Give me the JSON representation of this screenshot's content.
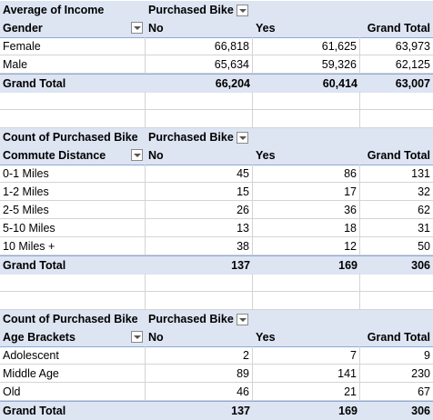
{
  "pivots": [
    {
      "value_label": "Average of Income",
      "column_field": "Purchased Bike",
      "row_field": "Gender",
      "col_headers": [
        "No",
        "Yes",
        "Grand Total"
      ],
      "rows": [
        {
          "label": "Female",
          "no": "66,818",
          "yes": "61,625",
          "total": "63,973"
        },
        {
          "label": "Male",
          "no": "65,634",
          "yes": "59,326",
          "total": "62,125"
        }
      ],
      "grand_total": {
        "label": "Grand Total",
        "no": "66,204",
        "yes": "60,414",
        "total": "63,007"
      }
    },
    {
      "value_label": "Count of Purchased Bike",
      "column_field": "Purchased Bike",
      "row_field": "Commute Distance",
      "col_headers": [
        "No",
        "Yes",
        "Grand Total"
      ],
      "rows": [
        {
          "label": "0-1 Miles",
          "no": "45",
          "yes": "86",
          "total": "131"
        },
        {
          "label": "1-2 Miles",
          "no": "15",
          "yes": "17",
          "total": "32"
        },
        {
          "label": "2-5 Miles",
          "no": "26",
          "yes": "36",
          "total": "62"
        },
        {
          "label": "5-10 Miles",
          "no": "13",
          "yes": "18",
          "total": "31"
        },
        {
          "label": "10 Miles +",
          "no": "38",
          "yes": "12",
          "total": "50"
        }
      ],
      "grand_total": {
        "label": "Grand Total",
        "no": "137",
        "yes": "169",
        "total": "306"
      }
    },
    {
      "value_label": "Count of Purchased Bike",
      "column_field": "Purchased Bike",
      "row_field": "Age Brackets",
      "col_headers": [
        "No",
        "Yes",
        "Grand Total"
      ],
      "rows": [
        {
          "label": "Adolescent",
          "no": "2",
          "yes": "7",
          "total": "9"
        },
        {
          "label": "Middle Age",
          "no": "89",
          "yes": "141",
          "total": "230"
        },
        {
          "label": "Old",
          "no": "46",
          "yes": "21",
          "total": "67"
        }
      ],
      "grand_total": {
        "label": "Grand Total",
        "no": "137",
        "yes": "169",
        "total": "306"
      }
    }
  ],
  "icons": {
    "filter": "dropdown-filter-icon"
  },
  "colors": {
    "header_fill": "#dde4f2",
    "header_border": "#8ea9db",
    "gridline": "#d4d4d4"
  }
}
